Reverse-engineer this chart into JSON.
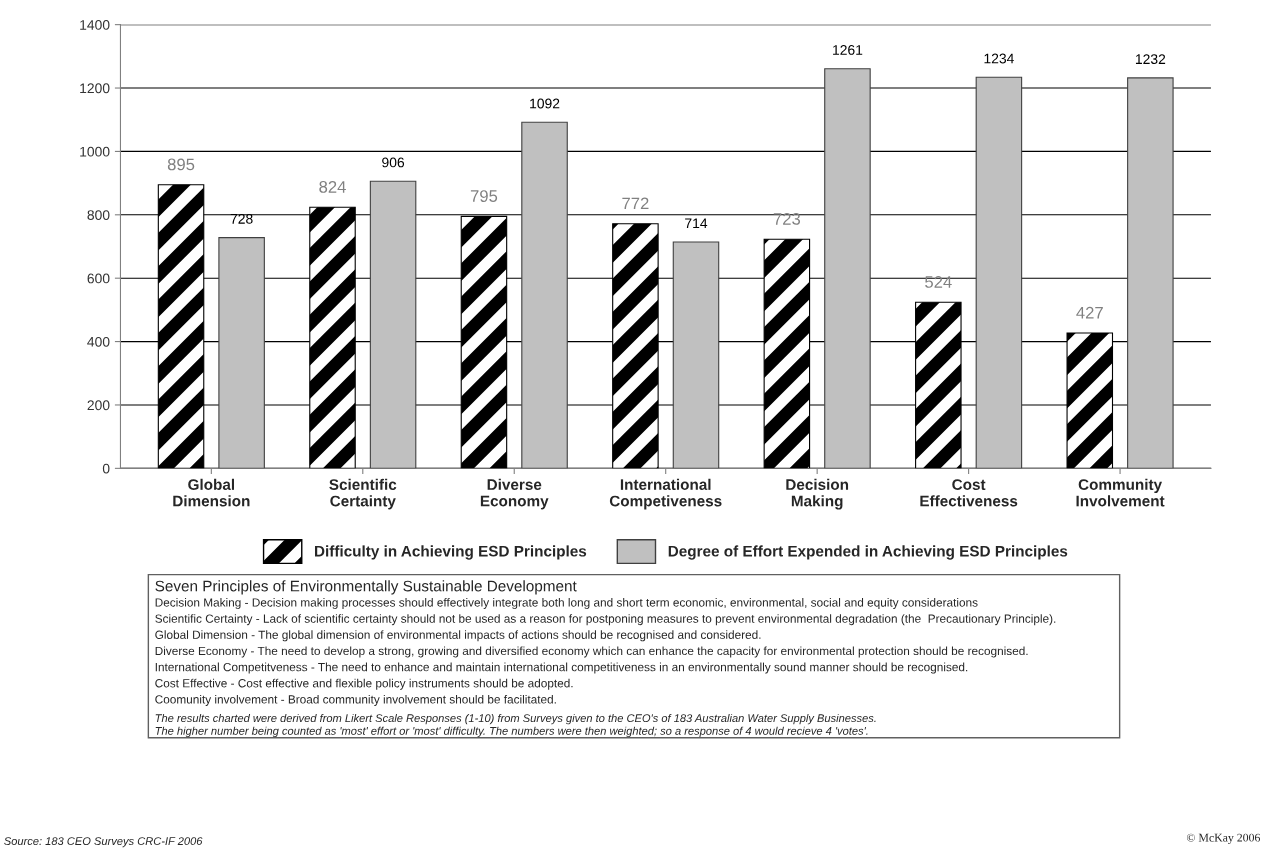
{
  "chart_data": {
    "type": "bar",
    "categories": [
      "Global\nDimension",
      "Scientific\nCertainty",
      "Diverse\nEconomy",
      "International\nCompetiveness",
      "Decision\nMaking",
      "Cost\nEffectiveness",
      "Community\nInvolvement"
    ],
    "series": [
      {
        "name": "Difficulty in Achieving ESD Principles",
        "color": "#000000",
        "values": [
          895,
          824,
          795,
          772,
          723,
          524,
          427
        ]
      },
      {
        "name": "Degree of Effort Expended in Achieving ESD Principles",
        "color": "#c0c0c0",
        "values": [
          728,
          906,
          1092,
          714,
          1261,
          1234,
          1232
        ]
      }
    ],
    "ylim": [
      0,
      1400
    ],
    "yticks": [
      0,
      200,
      400,
      600,
      800,
      1000,
      1200,
      1400
    ],
    "grid": "y",
    "legend": "bottom",
    "data_labels": true,
    "annotations": [
      "Seven Principles of Environmentally Sustainable Development",
      "Decision Making - Decision making processes should effectively integrate both long and short term economic, environmental, social and equity considerations",
      "Scientific Certainty - Lack of scientific certainty should not be used as a reason for postponing measures to prevent environmental degradation (the  Precautionary Principle).",
      "Global Dimension - The global dimension of environmental impacts of actions should be recognised and considered.",
      "Diverse Economy - The need to develop a strong, growing and diversified economy which can enhance the capacity for environmental protection should be recognised.",
      "International Competitveness - The need to enhance and maintain international competitiveness in an environmentally sound manner should be recognised.",
      "Cost Effective - Cost effective and flexible policy instruments should be adopted.",
      "Coomunity involvement - Broad community involvement should be facilitated.",
      "The results charted were derived from Likert Scale Responses (1-10) from Surveys given to the CEO's of 183 Australian Water Supply Businesses.",
      "The higher number being counted as 'most' effort or 'most' difficulty. The numbers were then weighted; so a response of 4 would recieve 4 'votes'.",
      "Source: 183 CEO Surveys CRC-IF 2006",
      "© McKay 2006"
    ]
  }
}
